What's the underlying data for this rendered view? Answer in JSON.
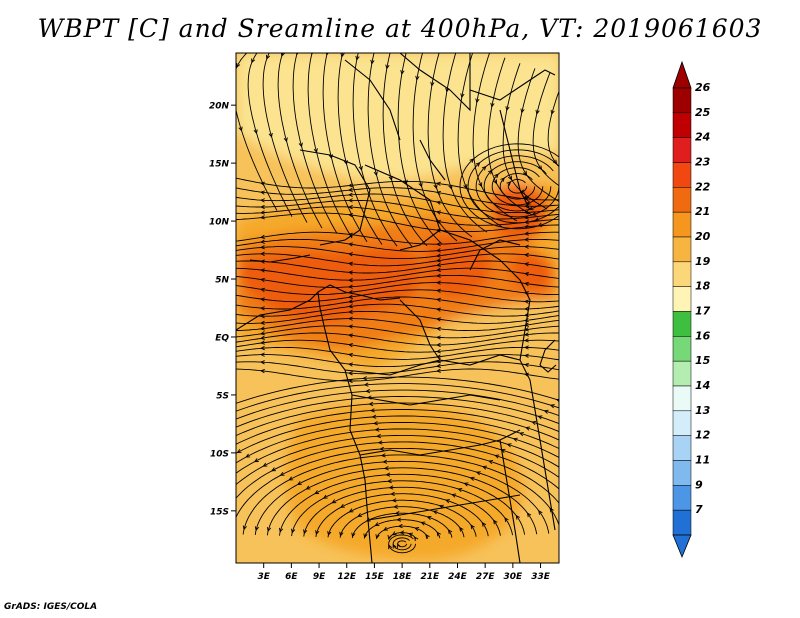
{
  "title": "WBPT [C] and Sreamline at 400hPa, VT: 2019061603",
  "credit": "GrADS: IGES/COLA",
  "map": {
    "lat_range": [
      -19.5,
      24.5
    ],
    "lon_range": [
      0,
      35
    ],
    "lat_ticks": [
      {
        "value": 20,
        "label": "20N"
      },
      {
        "value": 15,
        "label": "15N"
      },
      {
        "value": 10,
        "label": "10N"
      },
      {
        "value": 5,
        "label": "5N"
      },
      {
        "value": 0,
        "label": "EQ"
      },
      {
        "value": -5,
        "label": "5S"
      },
      {
        "value": -10,
        "label": "10S"
      },
      {
        "value": -15,
        "label": "15S"
      }
    ],
    "lon_ticks": [
      {
        "value": 3,
        "label": "3E"
      },
      {
        "value": 6,
        "label": "6E"
      },
      {
        "value": 9,
        "label": "9E"
      },
      {
        "value": 12,
        "label": "12E"
      },
      {
        "value": 15,
        "label": "15E"
      },
      {
        "value": 18,
        "label": "18E"
      },
      {
        "value": 21,
        "label": "21E"
      },
      {
        "value": 24,
        "label": "24E"
      },
      {
        "value": 27,
        "label": "27E"
      },
      {
        "value": 30,
        "label": "30E"
      },
      {
        "value": 33,
        "label": "33E"
      }
    ],
    "colors": {
      "c19": "#fbe38f",
      "c20": "#f7c25a",
      "c21": "#f5a92a",
      "c22": "#f07d16",
      "c23": "#ee5c10"
    }
  },
  "colorbar": {
    "labels": [
      "26",
      "25",
      "24",
      "23",
      "22",
      "21",
      "20",
      "19",
      "18",
      "17",
      "16",
      "15",
      "14",
      "13",
      "12",
      "11",
      "9",
      "7"
    ],
    "colors": [
      "#9e0000",
      "#c00000",
      "#e01e1e",
      "#f04810",
      "#f06a10",
      "#f5961e",
      "#f7b440",
      "#fcd77a",
      "#fdf4b6",
      "#3fbf3f",
      "#76d876",
      "#b3eeb0",
      "#eafbf7",
      "#d3eefa",
      "#a8d3f5",
      "#80b9ee",
      "#4d96e5",
      "#2070d5"
    ],
    "top_triangle_color": "#9e0000",
    "bottom_triangle_color": "#2070d5"
  }
}
